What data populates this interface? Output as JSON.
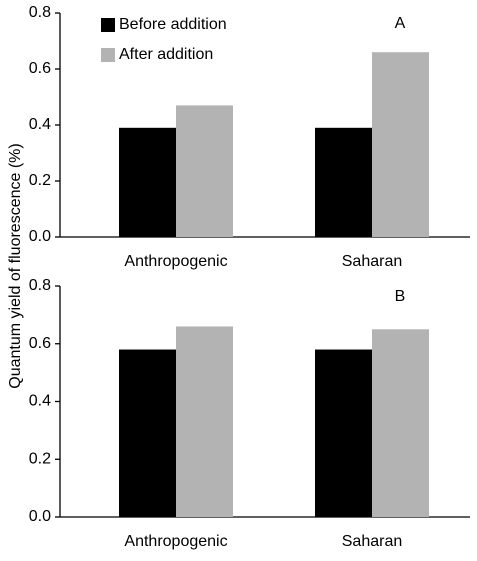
{
  "chart_data": [
    {
      "type": "bar",
      "panel_label": "A",
      "ylabel": "Quantum yield of fluorescence (%)",
      "categories": [
        "Anthropogenic",
        "Saharan"
      ],
      "series": [
        {
          "name": "Before addition",
          "color": "#000000",
          "values": [
            0.39,
            0.39
          ]
        },
        {
          "name": "After addition",
          "color": "#b3b3b3",
          "values": [
            0.47,
            0.66
          ]
        }
      ],
      "ylim": [
        0,
        0.8
      ],
      "yticks": [
        {
          "value": 0,
          "label": "0.0"
        },
        0.2,
        0.4,
        0.6,
        0.8
      ],
      "legend": "top-left"
    },
    {
      "type": "bar",
      "panel_label": "B",
      "categories": [
        "Anthropogenic",
        "Saharan"
      ],
      "series": [
        {
          "color": "#000000",
          "values": [
            0.58,
            0.58
          ]
        },
        {
          "color": "#b3b3b3",
          "values": [
            0.66,
            0.65
          ]
        }
      ],
      "ylim": [
        0,
        0.8
      ],
      "yticks": [
        {
          "value": 0,
          "label": "0.0"
        },
        0.2,
        0.4,
        0.6,
        0.8
      ]
    }
  ]
}
